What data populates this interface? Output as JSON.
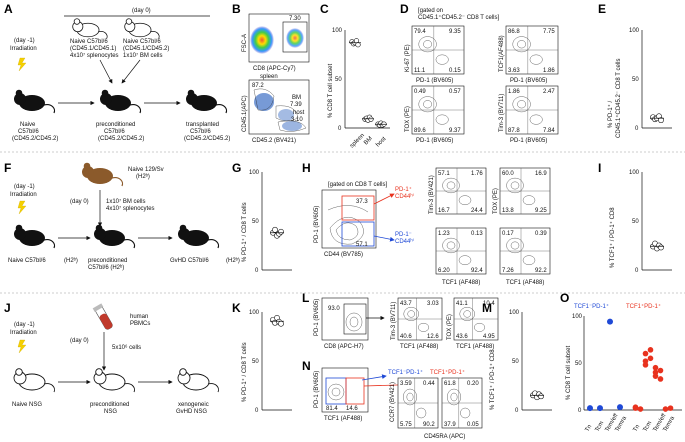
{
  "panels": {
    "A": {
      "letter": "A",
      "day0": "(day 0)",
      "dayminus1": "(day -1)",
      "irradiation": "Irradiation",
      "donor1": [
        "Naive C57bl/6",
        "(CD45.1/CD45.1)",
        "4x10⁷ splenocytes"
      ],
      "donor2": [
        "Naive C57bl/6",
        "(CD45.1/CD45.2)",
        "1x10⁷ BM cells"
      ],
      "recipient": [
        "Naive",
        "C57bl/6",
        "(CD45.2/CD45.2)"
      ],
      "precond": [
        "preconditioned",
        "C57bl/6",
        "(CD45.2/CD45.2)"
      ],
      "transplanted": [
        "transplanted",
        "C57bl/6",
        "(CD45.2/CD45.2)"
      ]
    },
    "B": {
      "letter": "B",
      "top_value": "7.30",
      "top_ylabel": "FSC-A",
      "top_xlabel": "CD8 (APC-Cy7)",
      "bot_ylabel": "CD45.1(APC)",
      "bot_xlabel": "CD45.2 (BV421)",
      "spleen_label": "spleen",
      "spleen_value": "87.2",
      "bm_label": "BM",
      "bm_value": "7.39",
      "host_label": "host",
      "host_value": "3.10"
    },
    "C": {
      "letter": "C",
      "ylabel": "% CD8 T cell subset",
      "xcats": [
        "spleen",
        "BM",
        "host"
      ],
      "yticks": [
        "100",
        "50",
        "0"
      ]
    },
    "D": {
      "letter": "D",
      "gate": [
        "[gated on",
        "CD45.1⁺CD45.2⁻ CD8 T cells]"
      ],
      "plots": [
        {
          "ylabel": "Ki-67 (PE)",
          "xlabel": "PD-1 (BV605)",
          "q": [
            "79.4",
            "9.35",
            "11.1",
            "0.15"
          ]
        },
        {
          "ylabel": "TCF1(AF488)",
          "xlabel": "PD-1 (BV605)",
          "q": [
            "86.8",
            "7.75",
            "3.63",
            "1.86"
          ]
        },
        {
          "ylabel": "TOX (PE)",
          "xlabel": "PD-1 (BV605)",
          "q": [
            "0.49",
            "0.57",
            "89.6",
            "9.37"
          ]
        },
        {
          "ylabel": "Tim-3 (BV711)",
          "xlabel": "PD-1 (BV605)",
          "q": [
            "1.86",
            "2.47",
            "87.8",
            "7.84"
          ]
        }
      ]
    },
    "E": {
      "letter": "E",
      "ylabel": [
        "% PD-1⁺ /",
        "CD45.1⁺CD45.2⁻ CD8 T cells"
      ],
      "yticks": [
        "100",
        "50",
        "0"
      ]
    },
    "F": {
      "letter": "F",
      "dayminus1": "(day -1)",
      "irradiation": "Irradiation",
      "donor": [
        "Naive 129/Sv",
        "(H2ᵇ)"
      ],
      "day0": "(day 0)",
      "cells": [
        "1x10⁷ BM cells",
        "4x10⁷ splenocytes"
      ],
      "recipient": [
        "Naive C57bl/6",
        "(H2ᵇ)"
      ],
      "precond": [
        "preconditioned",
        "C57bl/6 (H2ᵇ)"
      ],
      "gvhd": [
        "GvHD C57bl/6",
        "(H2ᵇ)"
      ]
    },
    "G": {
      "letter": "G",
      "ylabel": "% PD-1⁺ / CD8 T cells",
      "yticks": [
        "100",
        "50",
        "0"
      ]
    },
    "H": {
      "letter": "H",
      "gate": "[gated on CD8 T cells]",
      "ylabel": "PD-1 (BV605)",
      "xlabel": "CD44 (BV785)",
      "main_values": [
        "37.3",
        "57.1"
      ],
      "hi_label": [
        "PD-1⁺",
        "CD44ʰⁱ"
      ],
      "lo_label": [
        "PD-1⁻",
        "CD44ʰⁱ"
      ],
      "plots": [
        {
          "ylabel": "Tim-3 (BV421)",
          "q": [
            "57.1",
            "1.76",
            "16.7",
            "24.4"
          ]
        },
        {
          "ylabel": "TOX (PE)",
          "q": [
            "60.0",
            "16.9",
            "13.8",
            "9.25"
          ]
        },
        {
          "ylabel": "",
          "q": [
            "1.23",
            "0.13",
            "6.20",
            "92.4"
          ]
        },
        {
          "ylabel": "",
          "q": [
            "0.17",
            "0.39",
            "7.26",
            "92.2"
          ]
        }
      ],
      "xlabel_small": "TCF1 (AF488)"
    },
    "I": {
      "letter": "I",
      "ylabel": "% TCF1⁺ / PD-1⁺ CD8",
      "yticks": [
        "100",
        "50",
        "0"
      ]
    },
    "J": {
      "letter": "J",
      "dayminus1": "(day -1)",
      "irradiation": "Irradiation",
      "donor": [
        "human",
        "PBMCs"
      ],
      "day0": "(day 0)",
      "cells": "5x10⁶ cells",
      "recipient": "Naive NSG",
      "precond": [
        "preconditioned",
        "NSG"
      ],
      "xeno": [
        "xenogeneic",
        "GvHD NSG"
      ]
    },
    "K": {
      "letter": "K",
      "ylabel": "% PD-1⁺ / CD8 T cells",
      "yticks": [
        "100",
        "50",
        "0"
      ]
    },
    "L": {
      "letter": "L",
      "main": {
        "ylabel": "PD-1 (BV605)",
        "xlabel": "CD8 (APC-H7)",
        "value": "93.0"
      },
      "plots": [
        {
          "ylabel": "Tim-3 (BV711)",
          "xlabel": "TCF1 (AF488)",
          "q": [
            "43.7",
            "3.03",
            "40.6",
            "12.6"
          ]
        },
        {
          "ylabel": "TOX (PE)",
          "xlabel": "TCF1 (AF488)",
          "q": [
            "41.1",
            "10.4",
            "43.6",
            "4.95"
          ]
        }
      ]
    },
    "M": {
      "letter": "M",
      "ylabel": "% TCF1⁺ / PD-1⁺ CD8",
      "yticks": [
        "100",
        "50",
        "0"
      ]
    },
    "N": {
      "letter": "N",
      "ylabel": "PD-1 (BV605)",
      "xlabel": "TCF1 (AF488)",
      "main_values": [
        "81.4",
        "14.6"
      ],
      "tcf_neg_label": "TCF1⁻PD-1⁺",
      "tcf_pos_label": "TCF1⁺PD-1⁺",
      "ccr7_label": "CCR7 (BV421)",
      "cd45ra_label": "CD45RA (APC)",
      "plot1": [
        "3.59",
        "0.44",
        "5.75",
        "90.2"
      ],
      "plot2": [
        "61.8",
        "0.20",
        "37.9",
        "0.05"
      ]
    },
    "O": {
      "letter": "O",
      "ylabel": "% CD8 T cell subset",
      "legend_neg": "TCF1⁻PD-1⁺",
      "legend_pos": "TCF1⁺PD-1⁺",
      "xcats_neg": [
        "Tn",
        "Tcm",
        "Tem/eff",
        "Temra"
      ],
      "xcats_pos": [
        "Tn",
        "Tcm",
        "Tem/eff",
        "Temra"
      ],
      "yticks": [
        "100",
        "50",
        "0"
      ]
    }
  },
  "colors": {
    "blue": "#1f49d6",
    "red": "#e8321e",
    "gvhd_mouse": "#8b5a2b",
    "blood": "#c0392b"
  },
  "chart_data": [
    {
      "type": "scatter",
      "panel": "C",
      "title": "",
      "xlabel": "",
      "ylabel": "% CD8 T cell subset",
      "categories": [
        "spleen",
        "BM",
        "host"
      ],
      "ylim": [
        0,
        100
      ],
      "values": [
        [
          88,
          86,
          87,
          89,
          85
        ],
        [
          9,
          10,
          8,
          11,
          9
        ],
        [
          4,
          3,
          5,
          3,
          4
        ]
      ]
    },
    {
      "type": "scatter",
      "panel": "E",
      "ylabel": "% PD-1⁺ / CD45.1⁺CD45.2⁻ CD8 T cells",
      "ylim": [
        0,
        100
      ],
      "values": [
        11,
        9,
        10,
        12,
        8
      ]
    },
    {
      "type": "scatter",
      "panel": "G",
      "ylabel": "% PD-1⁺ / CD8 T cells",
      "ylim": [
        0,
        100
      ],
      "values": [
        38,
        41,
        35,
        37,
        39
      ]
    },
    {
      "type": "scatter",
      "panel": "I",
      "ylabel": "% TCF1⁺ / PD-1⁺ CD8",
      "ylim": [
        0,
        100
      ],
      "values": [
        24,
        27,
        22,
        25,
        23
      ]
    },
    {
      "type": "scatter",
      "panel": "K",
      "ylabel": "% PD-1⁺ / CD8 T cells",
      "ylim": [
        0,
        100
      ],
      "values": [
        92,
        89,
        94,
        90,
        88
      ]
    },
    {
      "type": "scatter",
      "panel": "M",
      "ylabel": "% TCF1⁺ / PD-1⁺ CD8",
      "ylim": [
        0,
        100
      ],
      "values": [
        15,
        17,
        13,
        16,
        14
      ]
    },
    {
      "type": "scatter",
      "panel": "O",
      "ylabel": "% CD8 T cell subset",
      "ylim": [
        0,
        100
      ],
      "series": [
        {
          "name": "TCF1⁻PD-1⁺",
          "categories": [
            "Tn",
            "Tcm",
            "Tem/eff",
            "Temra"
          ],
          "values": [
            2,
            2,
            94,
            3
          ]
        },
        {
          "name": "TCF1⁺PD-1⁺",
          "categories": [
            "Tn",
            "Tcm",
            "Tem/eff",
            "Temra"
          ],
          "values": [
            2,
            58,
            40,
            1
          ]
        }
      ]
    }
  ]
}
